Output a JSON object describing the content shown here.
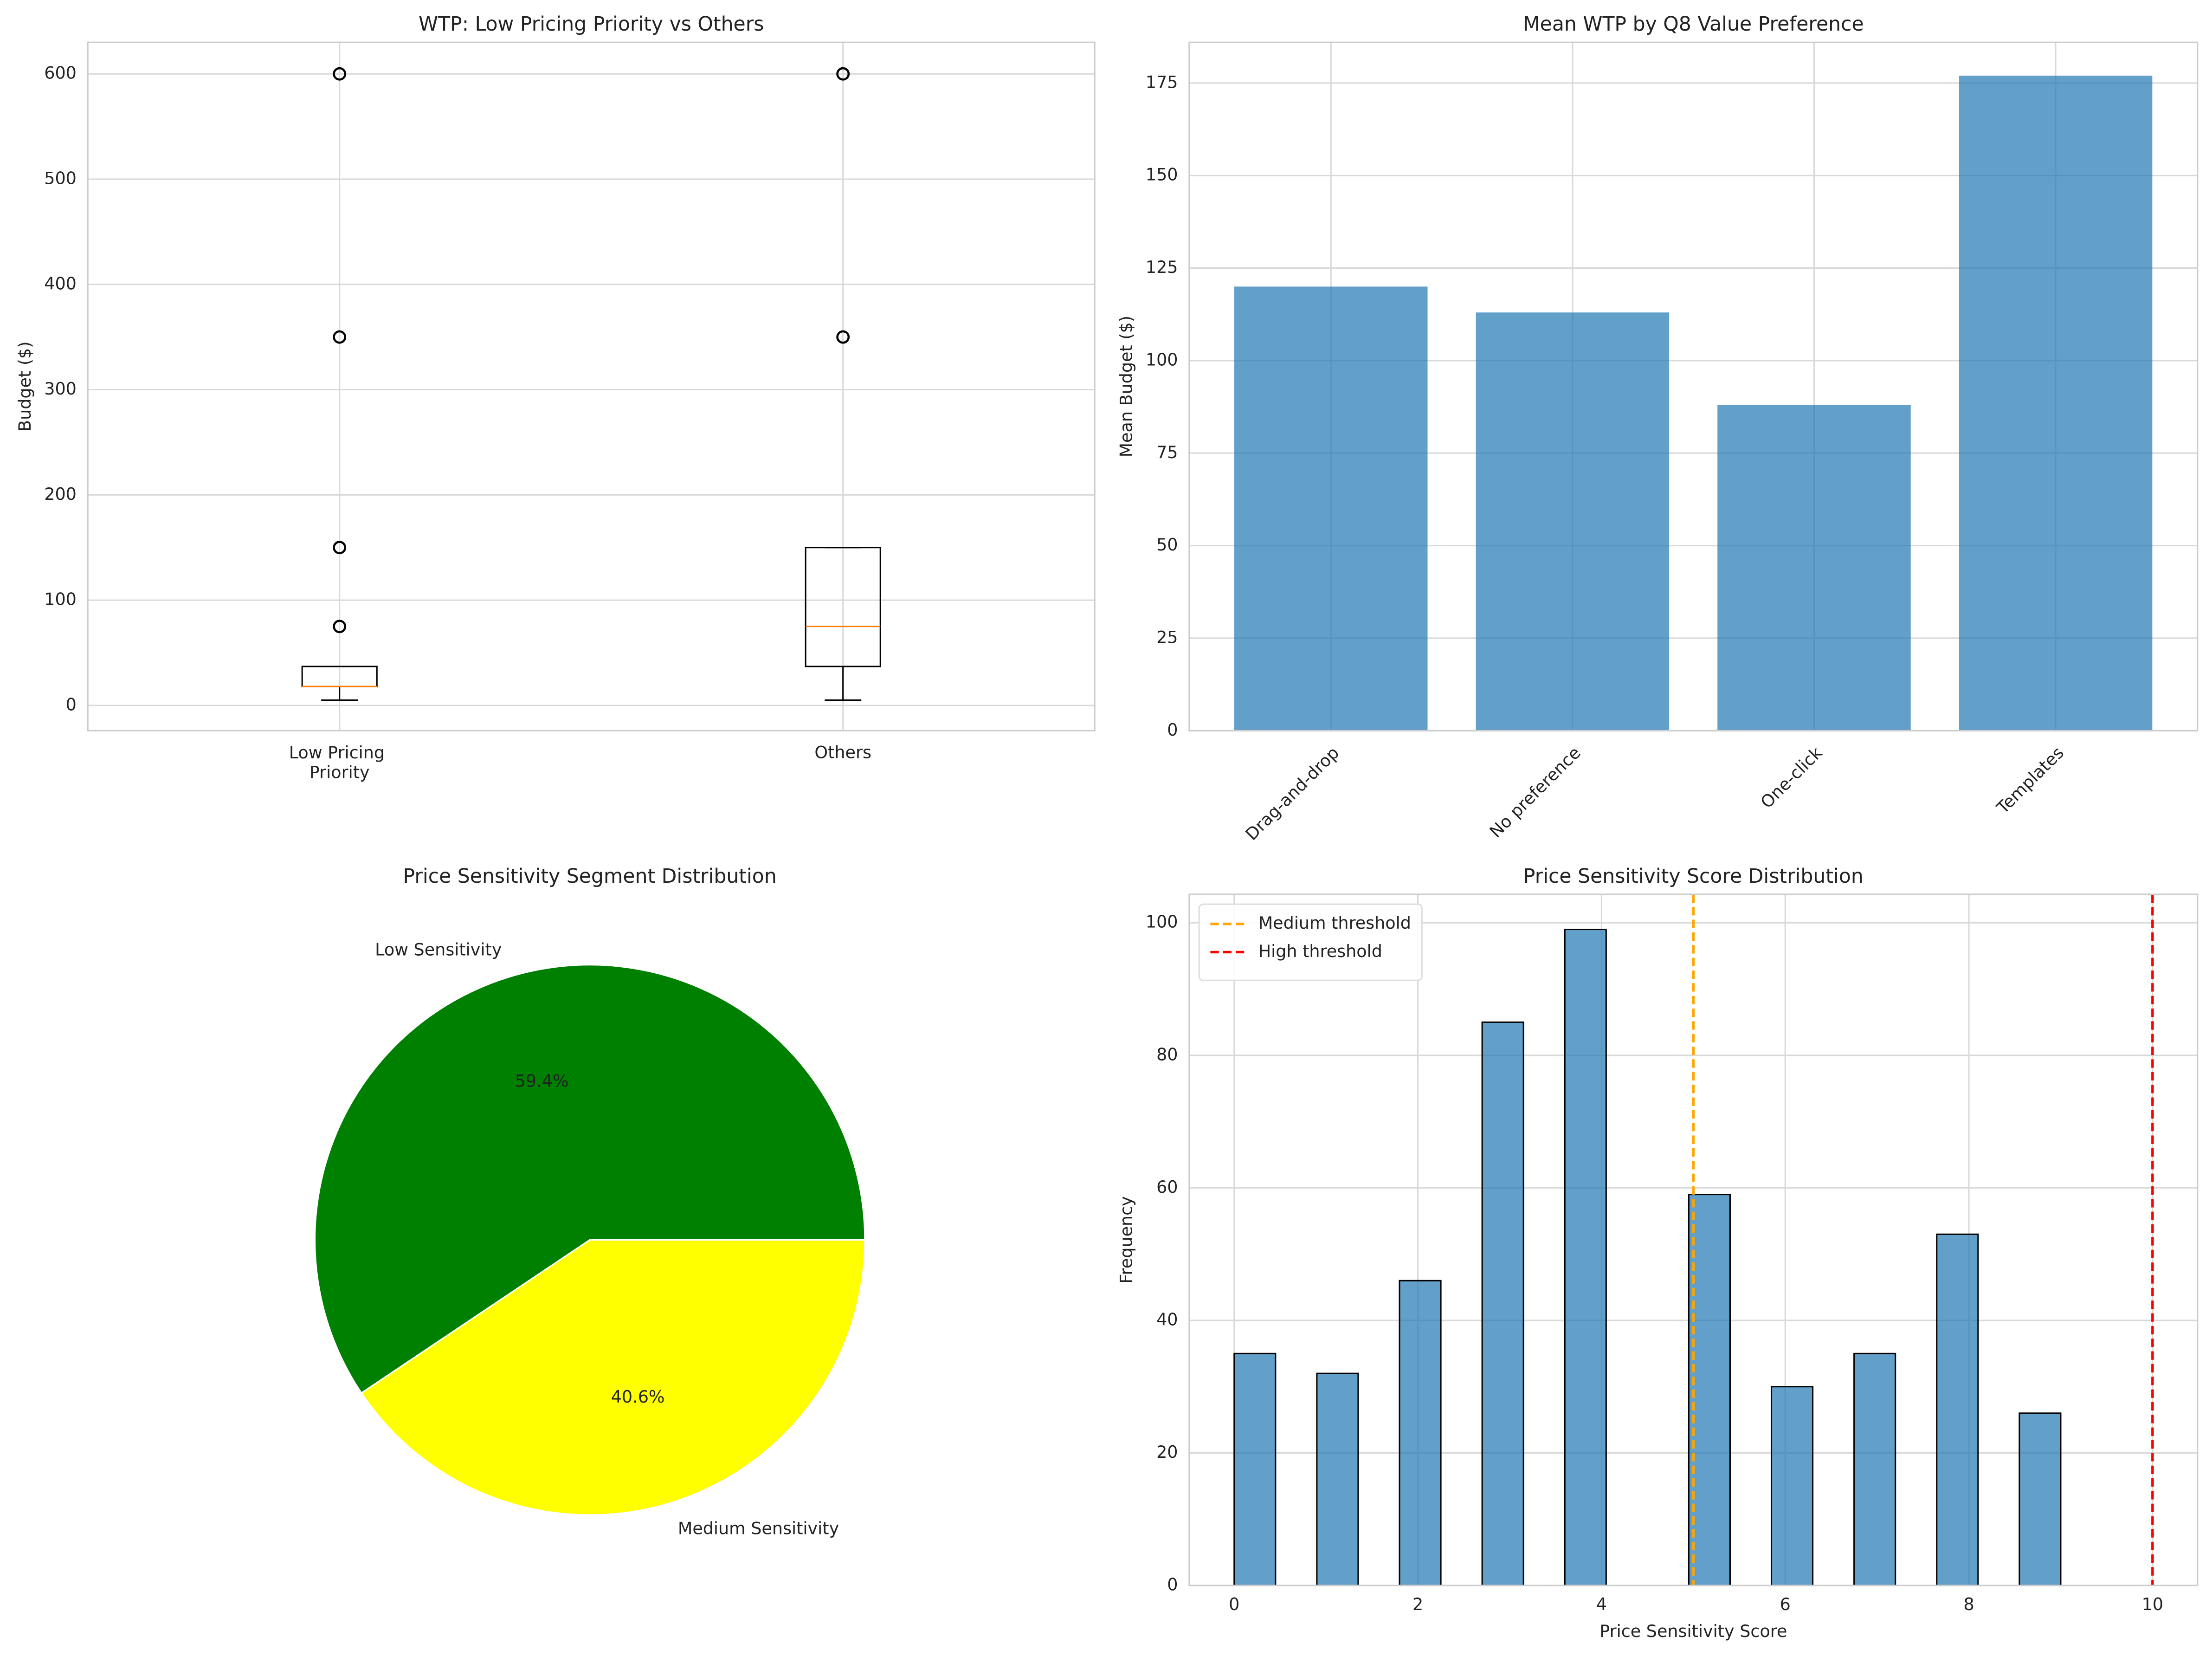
{
  "chart_data": [
    {
      "type": "box",
      "title": "WTP: Low Pricing Priority vs Others",
      "ylabel": "Budget ($)",
      "categories": [
        "Low Pricing\nPriority",
        "Others"
      ],
      "boxes": [
        {
          "whislo": 5,
          "q1": 18,
          "med": 18,
          "q3": 37,
          "whishi": 37,
          "fliers": [
            75,
            150,
            350,
            600
          ]
        },
        {
          "whislo": 5,
          "q1": 37,
          "med": 75,
          "q3": 150,
          "whishi": 150,
          "fliers": [
            350,
            600
          ]
        }
      ],
      "color": "#000000",
      "median_color": "#ff7f0e",
      "ylim": [
        -24,
        630
      ],
      "yticks": [
        0,
        100,
        200,
        300,
        400,
        500,
        600
      ],
      "grid": true
    },
    {
      "type": "bar",
      "title": "Mean WTP by Q8 Value Preference",
      "ylabel": "Mean Budget ($)",
      "categories": [
        "Drag-and-drop",
        "No preference",
        "One-click",
        "Templates"
      ],
      "values": [
        120,
        113,
        88,
        177
      ],
      "color": "#1f77b4",
      "alpha": 0.7,
      "ylim": [
        0,
        186
      ],
      "yticks": [
        0,
        25,
        50,
        75,
        100,
        125,
        150,
        175
      ],
      "grid": true
    },
    {
      "type": "pie",
      "title": "Price Sensitivity Segment Distribution",
      "categories": [
        "Low Sensitivity",
        "Medium Sensitivity"
      ],
      "values": [
        59.4,
        40.6
      ],
      "value_labels": [
        "59.4%",
        "40.6%"
      ],
      "colors": [
        "#008000",
        "#ffff00"
      ]
    },
    {
      "type": "histogram",
      "title": "Price Sensitivity Score Distribution",
      "xlabel": "Price Sensitivity Score",
      "ylabel": "Frequency",
      "bins": [
        0,
        0.45,
        0.9,
        1.35,
        1.8,
        2.25,
        2.7,
        3.15,
        3.6,
        4.05,
        4.5,
        4.95,
        5.4,
        5.85,
        6.3,
        6.75,
        7.2,
        7.65,
        8.1,
        8.55,
        9
      ],
      "values": [
        35,
        0,
        32,
        0,
        46,
        0,
        85,
        0,
        99,
        0,
        0,
        59,
        0,
        30,
        0,
        35,
        0,
        53,
        0,
        26
      ],
      "color": "#1f77b4",
      "alpha": 0.7,
      "vlines": [
        {
          "name": "Medium threshold",
          "x": 5,
          "color": "#ffa500"
        },
        {
          "name": "High threshold",
          "x": 10,
          "color": "#ff0000"
        }
      ],
      "legend": "upper left",
      "xlim": [
        -0.49,
        10.49
      ],
      "xticks": [
        0,
        2,
        4,
        6,
        8,
        10
      ],
      "ylim": [
        0,
        104.3
      ],
      "yticks": [
        0,
        20,
        40,
        60,
        80,
        100
      ],
      "grid": true
    }
  ]
}
